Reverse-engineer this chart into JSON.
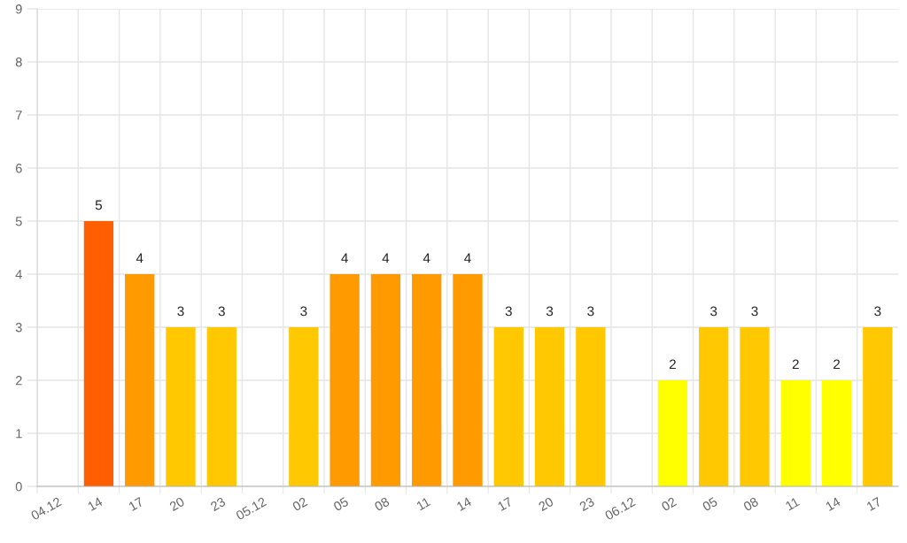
{
  "chart_data": {
    "type": "bar",
    "categories": [
      "04.12",
      "14",
      "17",
      "20",
      "23",
      "05.12",
      "02",
      "05",
      "08",
      "11",
      "14",
      "17",
      "20",
      "23",
      "06.12",
      "02",
      "05",
      "08",
      "11",
      "14",
      "17"
    ],
    "values": [
      null,
      5,
      4,
      3,
      3,
      null,
      3,
      4,
      4,
      4,
      4,
      3,
      3,
      3,
      null,
      2,
      3,
      3,
      2,
      2,
      3
    ],
    "colors": [
      null,
      "#ff5f00",
      "#ff9a00",
      "#ffc800",
      "#ffc800",
      null,
      "#ffc800",
      "#ff9a00",
      "#ff9a00",
      "#ff9a00",
      "#ff9a00",
      "#ffc800",
      "#ffc800",
      "#ffc800",
      null,
      "#ffff00",
      "#ffc800",
      "#ffc800",
      "#ffff00",
      "#ffff00",
      "#ffc800"
    ],
    "ylim": [
      0,
      9
    ],
    "yticks": [
      0,
      1,
      2,
      3,
      4,
      5,
      6,
      7,
      8,
      9
    ],
    "grid": true,
    "data_labels": true
  }
}
